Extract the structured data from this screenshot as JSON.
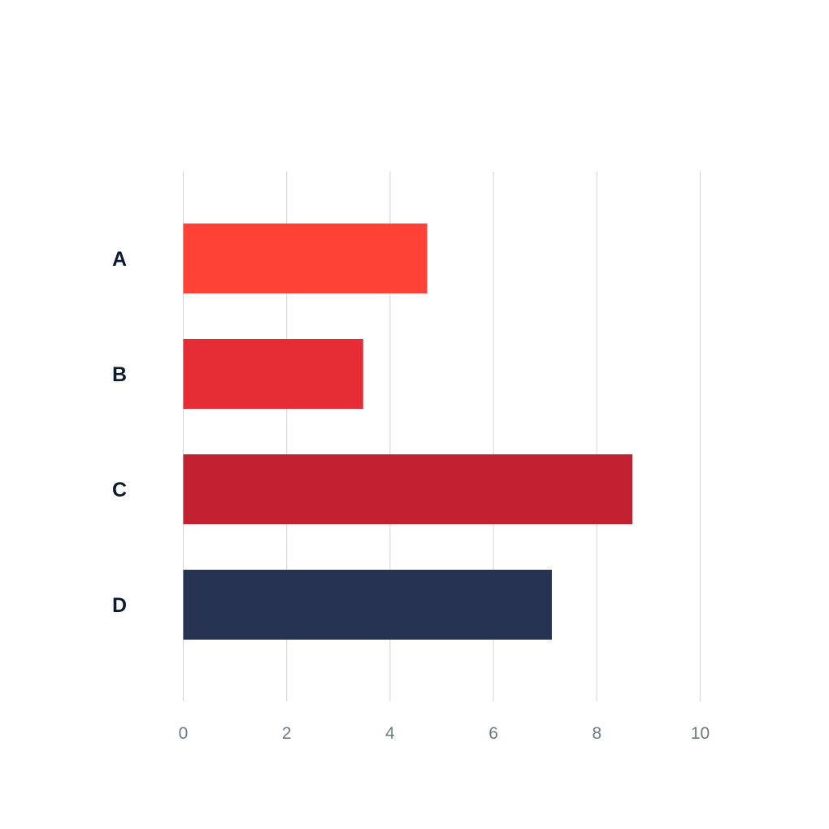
{
  "chart_data": {
    "type": "bar",
    "orientation": "horizontal",
    "title": "",
    "xlabel": "",
    "ylabel": "",
    "categories": [
      "A",
      "B",
      "C",
      "D"
    ],
    "values": [
      4.72,
      3.48,
      8.69,
      7.13
    ],
    "bar_colors": [
      "#ff4136",
      "#e62c35",
      "#c32131",
      "#263352"
    ],
    "xlim": [
      0,
      10
    ],
    "x_ticks": [
      0,
      2,
      4,
      6,
      8,
      10
    ],
    "x_tick_labels": [
      "0",
      "2",
      "4",
      "6",
      "8",
      "10"
    ],
    "grid": "vertical",
    "legend": "none"
  }
}
